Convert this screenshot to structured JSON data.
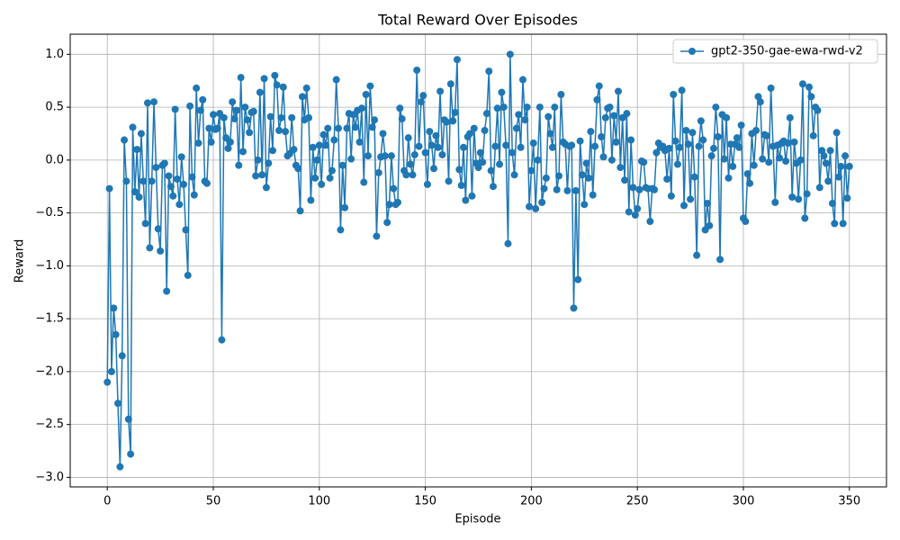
{
  "chart_data": {
    "type": "line",
    "title": "Total Reward Over Episodes",
    "xlabel": "Episode",
    "ylabel": "Reward",
    "xlim": [
      -17.5,
      367.5
    ],
    "ylim": [
      -3.09,
      1.19
    ],
    "xticks": [
      0,
      50,
      100,
      150,
      200,
      250,
      300,
      350
    ],
    "yticks": [
      {
        "value": -3.0,
        "label": "−3.0"
      },
      {
        "value": -2.5,
        "label": "−2.5"
      },
      {
        "value": -2.0,
        "label": "−2.0"
      },
      {
        "value": -1.5,
        "label": "−1.5"
      },
      {
        "value": -1.0,
        "label": "−1.0"
      },
      {
        "value": -0.5,
        "label": "−0.5"
      },
      {
        "value": 0.0,
        "label": "0.0"
      },
      {
        "value": 0.5,
        "label": "0.5"
      },
      {
        "value": 1.0,
        "label": "1.0"
      }
    ],
    "grid": true,
    "legend": "upper right",
    "x": [
      0,
      1,
      2,
      3,
      4,
      5,
      6,
      7,
      8,
      9,
      10,
      11,
      12,
      13,
      14,
      15,
      16,
      17,
      18,
      19,
      20,
      21,
      22,
      23,
      24,
      25,
      26,
      27,
      28,
      29,
      30,
      31,
      32,
      33,
      34,
      35,
      36,
      37,
      38,
      39,
      40,
      41,
      42,
      43,
      44,
      45,
      46,
      47,
      48,
      49,
      50,
      51,
      52,
      53,
      54,
      55,
      56,
      57,
      58,
      59,
      60,
      61,
      62,
      63,
      64,
      65,
      66,
      67,
      68,
      69,
      70,
      71,
      72,
      73,
      74,
      75,
      76,
      77,
      78,
      79,
      80,
      81,
      82,
      83,
      84,
      85,
      86,
      87,
      88,
      89,
      90,
      91,
      92,
      93,
      94,
      95,
      96,
      97,
      98,
      99,
      100,
      101,
      102,
      103,
      104,
      105,
      106,
      107,
      108,
      109,
      110,
      111,
      112,
      113,
      114,
      115,
      116,
      117,
      118,
      119,
      120,
      121,
      122,
      123,
      124,
      125,
      126,
      127,
      128,
      129,
      130,
      131,
      132,
      133,
      134,
      135,
      136,
      137,
      138,
      139,
      140,
      141,
      142,
      143,
      144,
      145,
      146,
      147,
      148,
      149,
      150,
      151,
      152,
      153,
      154,
      155,
      156,
      157,
      158,
      159,
      160,
      161,
      162,
      163,
      164,
      165,
      166,
      167,
      168,
      169,
      170,
      171,
      172,
      173,
      174,
      175,
      176,
      177,
      178,
      179,
      180,
      181,
      182,
      183,
      184,
      185,
      186,
      187,
      188,
      189,
      190,
      191,
      192,
      193,
      194,
      195,
      196,
      197,
      198,
      199,
      200,
      201,
      202,
      203,
      204,
      205,
      206,
      207,
      208,
      209,
      210,
      211,
      212,
      213,
      214,
      215,
      216,
      217,
      218,
      219,
      220,
      221,
      222,
      223,
      224,
      225,
      226,
      227,
      228,
      229,
      230,
      231,
      232,
      233,
      234,
      235,
      236,
      237,
      238,
      239,
      240,
      241,
      242,
      243,
      244,
      245,
      246,
      247,
      248,
      249,
      250,
      251,
      252,
      253,
      254,
      255,
      256,
      257,
      258,
      259,
      260,
      261,
      262,
      263,
      264,
      265,
      266,
      267,
      268,
      269,
      270,
      271,
      272,
      273,
      274,
      275,
      276,
      277,
      278,
      279,
      280,
      281,
      282,
      283,
      284,
      285,
      286,
      287,
      288,
      289,
      290,
      291,
      292,
      293,
      294,
      295,
      296,
      297,
      298,
      299,
      300,
      301,
      302,
      303,
      304,
      305,
      306,
      307,
      308,
      309,
      310,
      311,
      312,
      313,
      314,
      315,
      316,
      317,
      318,
      319,
      320,
      321,
      322,
      323,
      324,
      325,
      326,
      327,
      328,
      329,
      330,
      331,
      332,
      333,
      334,
      335,
      336,
      337,
      338,
      339,
      340,
      341,
      342,
      343,
      344,
      345,
      346,
      347,
      348,
      349,
      350
    ],
    "series": [
      {
        "name": "gpt2-350-gae-ewa-rwd-v2",
        "color": "#1f77b4",
        "values": [
          -2.1,
          -0.27,
          -2.0,
          -1.4,
          -1.65,
          -2.3,
          -2.9,
          -1.85,
          0.19,
          -0.2,
          -2.45,
          -2.78,
          0.31,
          -0.3,
          0.1,
          -0.35,
          0.25,
          -0.2,
          -0.6,
          0.54,
          -0.83,
          -0.2,
          0.55,
          -0.07,
          -0.65,
          -0.86,
          -0.05,
          -0.03,
          -1.24,
          -0.15,
          -0.25,
          -0.34,
          0.48,
          -0.18,
          -0.42,
          0.03,
          -0.23,
          -0.66,
          -1.09,
          0.51,
          -0.16,
          -0.33,
          0.68,
          0.16,
          0.47,
          0.57,
          -0.2,
          -0.22,
          0.3,
          0.17,
          0.43,
          0.29,
          0.3,
          0.44,
          -1.7,
          0.4,
          0.21,
          0.11,
          0.17,
          0.55,
          0.39,
          0.47,
          -0.05,
          0.78,
          0.08,
          0.5,
          0.38,
          0.26,
          0.45,
          0.46,
          -0.15,
          0.0,
          0.64,
          -0.14,
          0.77,
          -0.26,
          -0.03,
          0.41,
          0.09,
          0.8,
          0.71,
          0.28,
          0.4,
          0.69,
          0.27,
          0.04,
          0.06,
          0.4,
          0.1,
          -0.05,
          -0.08,
          -0.48,
          0.6,
          0.38,
          0.68,
          0.4,
          -0.38,
          0.12,
          -0.17,
          0.0,
          0.14,
          -0.23,
          0.24,
          0.14,
          0.3,
          -0.17,
          -0.1,
          0.19,
          0.76,
          0.3,
          -0.66,
          -0.05,
          -0.45,
          0.3,
          0.44,
          0.01,
          0.43,
          0.31,
          0.47,
          0.17,
          0.49,
          -0.21,
          0.62,
          0.04,
          0.7,
          0.31,
          0.38,
          -0.72,
          -0.12,
          0.03,
          0.25,
          0.04,
          -0.59,
          -0.42,
          0.04,
          -0.27,
          -0.42,
          -0.4,
          0.49,
          0.39,
          -0.1,
          -0.14,
          0.21,
          -0.04,
          -0.14,
          0.05,
          0.85,
          0.13,
          0.55,
          0.61,
          0.07,
          -0.23,
          0.27,
          0.14,
          -0.08,
          0.23,
          0.12,
          0.65,
          0.05,
          0.38,
          0.36,
          -0.2,
          0.72,
          0.37,
          0.45,
          0.95,
          -0.09,
          -0.24,
          0.12,
          -0.38,
          0.22,
          0.25,
          -0.34,
          0.3,
          -0.03,
          -0.07,
          0.07,
          -0.02,
          0.28,
          0.44,
          0.84,
          -0.1,
          -0.25,
          0.13,
          0.49,
          -0.04,
          0.64,
          0.5,
          0.14,
          -0.79,
          1.0,
          0.07,
          -0.14,
          0.3,
          0.43,
          0.12,
          0.76,
          0.38,
          0.5,
          -0.44,
          -0.1,
          0.16,
          -0.46,
          0.0,
          0.5,
          -0.4,
          -0.27,
          -0.17,
          0.41,
          0.25,
          0.12,
          0.5,
          -0.28,
          -0.15,
          0.62,
          0.17,
          0.15,
          -0.29,
          0.13,
          0.14,
          -1.4,
          -0.29,
          -1.13,
          0.18,
          -0.14,
          -0.42,
          -0.03,
          -0.17,
          0.27,
          -0.33,
          0.13,
          0.57,
          0.7,
          0.22,
          0.03,
          0.4,
          0.49,
          0.5,
          0.0,
          0.42,
          0.17,
          0.65,
          -0.07,
          0.4,
          -0.19,
          0.44,
          -0.49,
          0.19,
          -0.26,
          -0.52,
          -0.46,
          -0.28,
          -0.01,
          -0.02,
          -0.26,
          -0.27,
          -0.58,
          -0.27,
          -0.28,
          0.07,
          0.16,
          0.12,
          0.13,
          0.09,
          -0.18,
          0.11,
          -0.34,
          0.62,
          0.18,
          -0.04,
          0.12,
          0.66,
          -0.43,
          0.28,
          0.15,
          -0.37,
          0.26,
          -0.16,
          -0.9,
          0.13,
          0.37,
          0.19,
          -0.66,
          -0.41,
          -0.62,
          0.04,
          0.11,
          0.5,
          0.22,
          -0.94,
          0.43,
          0.01,
          0.4,
          -0.17,
          0.15,
          -0.06,
          0.15,
          0.21,
          0.12,
          0.33,
          -0.55,
          -0.58,
          -0.13,
          -0.22,
          0.25,
          -0.05,
          0.28,
          0.6,
          0.55,
          0.01,
          0.24,
          0.23,
          -0.02,
          0.68,
          0.13,
          -0.4,
          0.14,
          0.02,
          0.16,
          0.18,
          -0.01,
          0.16,
          0.4,
          -0.35,
          0.17,
          -0.03,
          -0.37,
          0.0,
          0.72,
          -0.55,
          -0.32,
          0.69,
          0.6,
          0.23,
          0.5,
          0.47,
          -0.26,
          0.09,
          0.04,
          -0.03,
          -0.2,
          0.09,
          -0.41,
          -0.6,
          0.26,
          -0.16,
          -0.06,
          -0.6,
          0.04,
          -0.36,
          -0.06
        ]
      }
    ]
  }
}
